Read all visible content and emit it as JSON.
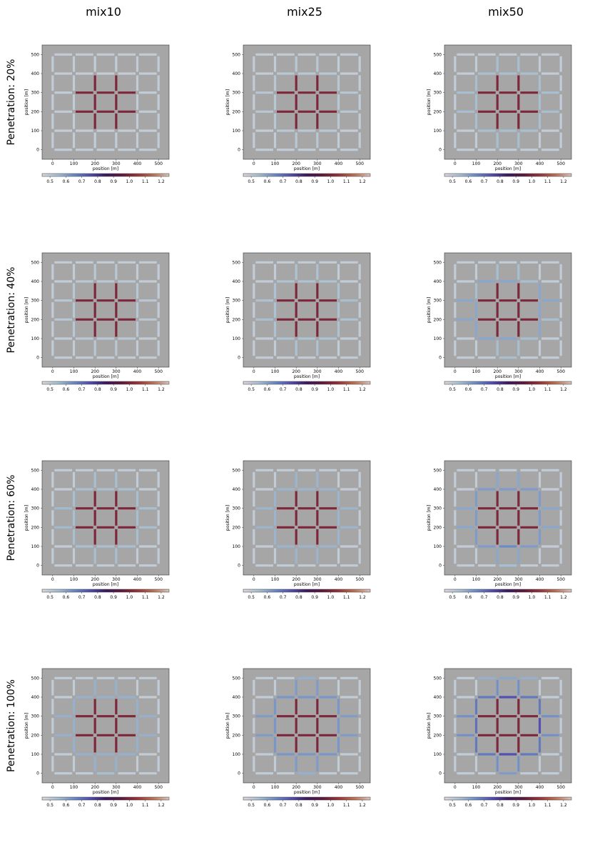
{
  "chart_data": {
    "type": "network",
    "columns": [
      "mix10",
      "mix25",
      "mix50"
    ],
    "rows": [
      "Penetration: 20%",
      "Penetration: 40%",
      "Penetration: 60%",
      "Penetration: 100%"
    ],
    "xlabel": "position [m]",
    "ylabel": "position [m]",
    "xlim": [
      -50,
      550
    ],
    "ylim": [
      -50,
      550
    ],
    "xticks": [
      0,
      100,
      200,
      300,
      400,
      500
    ],
    "yticks": [
      0,
      100,
      200,
      300,
      400,
      500
    ],
    "background": "#a6a6a6",
    "colorbar": {
      "lim": [
        0.45,
        1.25
      ],
      "ticks": [
        0.5,
        0.6,
        0.7,
        0.8,
        0.9,
        {
          "value": 1,
          "label": "1.0"
        },
        1.1,
        1.2
      ]
    },
    "colormap": {
      "values": [
        0.45,
        0.55,
        0.65,
        0.75,
        0.85,
        0.95,
        1.05,
        1.15,
        1.25
      ],
      "colors": [
        "#dcd8dc",
        "#a8bfd1",
        "#6c8cc6",
        "#5350b0",
        "#3d1a60",
        "#5f1a3c",
        "#98343a",
        "#bd7356",
        "#d9c6be"
      ]
    },
    "network": {
      "grid_x": [
        0,
        100,
        200,
        300,
        400,
        500
      ],
      "grid_y": [
        0,
        100,
        200,
        300,
        400,
        500
      ]
    },
    "panels": [
      {
        "horizontal": [
          [
            0.5,
            0.5,
            0.5,
            0.5,
            0.5
          ],
          [
            0.5,
            0.5,
            0.5,
            0.5,
            0.5
          ],
          [
            0.5,
            1,
            1,
            1,
            0.5
          ],
          [
            0.5,
            1,
            1,
            1,
            0.5
          ],
          [
            0.5,
            0.5,
            0.5,
            0.5,
            0.5
          ],
          [
            0.5,
            0.5,
            0.5,
            0.5,
            0.5
          ]
        ],
        "vertical": [
          [
            0.5,
            0.5,
            0.5,
            0.5,
            0.5
          ],
          [
            0.5,
            0.5,
            0.5,
            0.5,
            0.5
          ],
          [
            0.5,
            1,
            1,
            1,
            0.5
          ],
          [
            0.5,
            1,
            1,
            1,
            0.5
          ],
          [
            0.5,
            0.5,
            0.5,
            0.5,
            0.5
          ],
          [
            0.5,
            0.5,
            0.5,
            0.5,
            0.5
          ]
        ]
      },
      {
        "horizontal": [
          [
            0.5,
            0.5,
            0.5,
            0.5,
            0.5
          ],
          [
            0.5,
            0.52,
            0.52,
            0.52,
            0.5
          ],
          [
            0.52,
            1,
            1,
            1,
            0.52
          ],
          [
            0.52,
            1,
            1,
            1,
            0.52
          ],
          [
            0.5,
            0.52,
            0.52,
            0.52,
            0.5
          ],
          [
            0.5,
            0.5,
            0.5,
            0.5,
            0.5
          ]
        ],
        "vertical": [
          [
            0.5,
            0.5,
            0.5,
            0.5,
            0.5
          ],
          [
            0.5,
            0.52,
            0.52,
            0.52,
            0.5
          ],
          [
            0.52,
            1,
            1,
            1,
            0.52
          ],
          [
            0.52,
            1,
            1,
            1,
            0.52
          ],
          [
            0.5,
            0.52,
            0.52,
            0.52,
            0.5
          ],
          [
            0.5,
            0.5,
            0.5,
            0.5,
            0.5
          ]
        ]
      },
      {
        "horizontal": [
          [
            0.5,
            0.5,
            0.5,
            0.5,
            0.5
          ],
          [
            0.5,
            0.55,
            0.55,
            0.55,
            0.5
          ],
          [
            0.55,
            1,
            1,
            1,
            0.55
          ],
          [
            0.55,
            1,
            1,
            1,
            0.55
          ],
          [
            0.5,
            0.55,
            0.55,
            0.55,
            0.5
          ],
          [
            0.5,
            0.5,
            0.5,
            0.5,
            0.5
          ]
        ],
        "vertical": [
          [
            0.5,
            0.5,
            0.5,
            0.5,
            0.5
          ],
          [
            0.5,
            0.55,
            0.55,
            0.55,
            0.5
          ],
          [
            0.55,
            1,
            1,
            1,
            0.55
          ],
          [
            0.55,
            1,
            1,
            1,
            0.55
          ],
          [
            0.5,
            0.55,
            0.55,
            0.55,
            0.5
          ],
          [
            0.5,
            0.5,
            0.5,
            0.5,
            0.5
          ]
        ]
      },
      {
        "horizontal": [
          [
            0.5,
            0.5,
            0.5,
            0.5,
            0.5
          ],
          [
            0.5,
            0.52,
            0.52,
            0.52,
            0.5
          ],
          [
            0.52,
            1,
            1,
            1,
            0.52
          ],
          [
            0.52,
            1,
            1,
            1,
            0.52
          ],
          [
            0.5,
            0.52,
            0.52,
            0.52,
            0.5
          ],
          [
            0.5,
            0.5,
            0.5,
            0.5,
            0.5
          ]
        ],
        "vertical": [
          [
            0.5,
            0.5,
            0.5,
            0.5,
            0.5
          ],
          [
            0.5,
            0.52,
            0.52,
            0.52,
            0.5
          ],
          [
            0.52,
            1,
            1,
            1,
            0.52
          ],
          [
            0.52,
            1,
            1,
            1,
            0.52
          ],
          [
            0.5,
            0.52,
            0.52,
            0.52,
            0.5
          ],
          [
            0.5,
            0.5,
            0.5,
            0.5,
            0.5
          ]
        ]
      },
      {
        "horizontal": [
          [
            0.5,
            0.5,
            0.5,
            0.5,
            0.5
          ],
          [
            0.5,
            0.54,
            0.54,
            0.54,
            0.5
          ],
          [
            0.55,
            1,
            1,
            1,
            0.54
          ],
          [
            0.54,
            1,
            1,
            1,
            0.55
          ],
          [
            0.5,
            0.54,
            0.54,
            0.54,
            0.5
          ],
          [
            0.5,
            0.5,
            0.5,
            0.5,
            0.5
          ]
        ],
        "vertical": [
          [
            0.5,
            0.5,
            0.5,
            0.5,
            0.5
          ],
          [
            0.5,
            0.54,
            0.54,
            0.54,
            0.5
          ],
          [
            0.54,
            1,
            1,
            1,
            0.54
          ],
          [
            0.54,
            1,
            1,
            1,
            0.54
          ],
          [
            0.5,
            0.54,
            0.54,
            0.54,
            0.5
          ],
          [
            0.5,
            0.5,
            0.5,
            0.5,
            0.5
          ]
        ]
      },
      {
        "horizontal": [
          [
            0.5,
            0.5,
            0.55,
            0.5,
            0.5
          ],
          [
            0.5,
            0.6,
            0.6,
            0.55,
            0.5
          ],
          [
            0.6,
            1,
            1,
            1,
            0.55
          ],
          [
            0.6,
            1,
            1,
            1,
            0.6
          ],
          [
            0.5,
            0.6,
            0.6,
            0.55,
            0.5
          ],
          [
            0.5,
            0.5,
            0.5,
            0.5,
            0.5
          ]
        ],
        "vertical": [
          [
            0.5,
            0.5,
            0.5,
            0.5,
            0.5
          ],
          [
            0.5,
            0.6,
            0.6,
            0.55,
            0.5
          ],
          [
            0.55,
            1,
            1,
            1,
            0.55
          ],
          [
            0.55,
            1,
            1,
            1,
            0.55
          ],
          [
            0.5,
            0.6,
            0.6,
            0.6,
            0.5
          ],
          [
            0.5,
            0.5,
            0.5,
            0.5,
            0.5
          ]
        ]
      },
      {
        "horizontal": [
          [
            0.5,
            0.5,
            0.5,
            0.5,
            0.5
          ],
          [
            0.5,
            0.55,
            0.55,
            0.55,
            0.5
          ],
          [
            0.56,
            1,
            1,
            1,
            0.55
          ],
          [
            0.56,
            1,
            1,
            1,
            0.55
          ],
          [
            0.5,
            0.55,
            0.55,
            0.55,
            0.5
          ],
          [
            0.5,
            0.5,
            0.5,
            0.5,
            0.5
          ]
        ],
        "vertical": [
          [
            0.5,
            0.5,
            0.5,
            0.5,
            0.5
          ],
          [
            0.5,
            0.55,
            0.55,
            0.55,
            0.5
          ],
          [
            0.55,
            1,
            1,
            1,
            0.55
          ],
          [
            0.55,
            1,
            1,
            1,
            0.55
          ],
          [
            0.5,
            0.55,
            0.55,
            0.55,
            0.5
          ],
          [
            0.5,
            0.5,
            0.5,
            0.5,
            0.5
          ]
        ]
      },
      {
        "horizontal": [
          [
            0.5,
            0.5,
            0.5,
            0.5,
            0.5
          ],
          [
            0.5,
            0.57,
            0.57,
            0.57,
            0.5
          ],
          [
            0.57,
            1,
            1,
            1,
            0.57
          ],
          [
            0.57,
            1,
            1,
            1,
            0.57
          ],
          [
            0.5,
            0.57,
            0.57,
            0.57,
            0.5
          ],
          [
            0.5,
            0.5,
            0.5,
            0.5,
            0.5
          ]
        ],
        "vertical": [
          [
            0.5,
            0.5,
            0.5,
            0.5,
            0.5
          ],
          [
            0.5,
            0.57,
            0.57,
            0.57,
            0.5
          ],
          [
            0.57,
            1,
            1,
            1,
            0.57
          ],
          [
            0.57,
            1,
            1,
            1,
            0.57
          ],
          [
            0.5,
            0.57,
            0.57,
            0.57,
            0.5
          ],
          [
            0.5,
            0.5,
            0.5,
            0.5,
            0.5
          ]
        ]
      },
      {
        "horizontal": [
          [
            0.5,
            0.5,
            0.55,
            0.5,
            0.5
          ],
          [
            0.5,
            0.62,
            0.65,
            0.62,
            0.5
          ],
          [
            0.6,
            1,
            1,
            1,
            0.6
          ],
          [
            0.6,
            1,
            1,
            1,
            0.6
          ],
          [
            0.5,
            0.62,
            0.62,
            0.62,
            0.5
          ],
          [
            0.5,
            0.5,
            0.5,
            0.5,
            0.5
          ]
        ],
        "vertical": [
          [
            0.5,
            0.5,
            0.5,
            0.5,
            0.5
          ],
          [
            0.5,
            0.62,
            0.62,
            0.62,
            0.5
          ],
          [
            0.6,
            1,
            1,
            1,
            0.6
          ],
          [
            0.6,
            1,
            1,
            1,
            0.6
          ],
          [
            0.5,
            0.62,
            0.62,
            0.62,
            0.5
          ],
          [
            0.5,
            0.5,
            0.5,
            0.5,
            0.5
          ]
        ]
      },
      {
        "horizontal": [
          [
            0.5,
            0.5,
            0.55,
            0.5,
            0.5
          ],
          [
            0.5,
            0.58,
            0.58,
            0.58,
            0.5
          ],
          [
            0.58,
            1,
            1,
            1,
            0.58
          ],
          [
            0.58,
            1,
            1,
            1,
            0.58
          ],
          [
            0.5,
            0.58,
            0.58,
            0.58,
            0.5
          ],
          [
            0.5,
            0.5,
            0.5,
            0.5,
            0.5
          ]
        ],
        "vertical": [
          [
            0.5,
            0.5,
            0.5,
            0.5,
            0.5
          ],
          [
            0.5,
            0.58,
            0.58,
            0.58,
            0.5
          ],
          [
            0.58,
            1,
            1,
            1,
            0.58
          ],
          [
            0.58,
            1,
            1,
            1,
            0.58
          ],
          [
            0.5,
            0.58,
            0.58,
            0.58,
            0.5
          ],
          [
            0.5,
            0.5,
            0.5,
            0.5,
            0.5
          ]
        ]
      },
      {
        "horizontal": [
          [
            0.5,
            0.5,
            0.58,
            0.5,
            0.5
          ],
          [
            0.5,
            0.63,
            0.63,
            0.63,
            0.5
          ],
          [
            0.62,
            1,
            1,
            1,
            0.62
          ],
          [
            0.62,
            1,
            1,
            1,
            0.62
          ],
          [
            0.5,
            0.63,
            0.63,
            0.63,
            0.5
          ],
          [
            0.5,
            0.5,
            0.58,
            0.5,
            0.5
          ]
        ],
        "vertical": [
          [
            0.5,
            0.5,
            0.5,
            0.5,
            0.5
          ],
          [
            0.5,
            0.63,
            0.63,
            0.63,
            0.5
          ],
          [
            0.62,
            1,
            1,
            1,
            0.62
          ],
          [
            0.62,
            1,
            1,
            1,
            0.62
          ],
          [
            0.5,
            0.63,
            0.63,
            0.63,
            0.5
          ],
          [
            0.5,
            0.5,
            0.5,
            0.5,
            0.5
          ]
        ]
      },
      {
        "horizontal": [
          [
            0.5,
            0.5,
            0.62,
            0.5,
            0.5
          ],
          [
            0.5,
            0.68,
            0.75,
            0.68,
            0.5
          ],
          [
            0.64,
            1,
            1,
            1,
            0.64
          ],
          [
            0.64,
            1,
            1,
            1,
            0.64
          ],
          [
            0.5,
            0.68,
            0.75,
            0.68,
            0.5
          ],
          [
            0.5,
            0.58,
            0.6,
            0.58,
            0.5
          ]
        ],
        "vertical": [
          [
            0.5,
            0.5,
            0.5,
            0.5,
            0.5
          ],
          [
            0.5,
            0.68,
            0.7,
            0.68,
            0.5
          ],
          [
            0.64,
            1,
            1,
            1,
            0.64
          ],
          [
            0.64,
            1,
            1,
            1,
            0.64
          ],
          [
            0.5,
            0.68,
            0.75,
            0.68,
            0.5
          ],
          [
            0.5,
            0.5,
            0.5,
            0.5,
            0.5
          ]
        ]
      }
    ]
  }
}
